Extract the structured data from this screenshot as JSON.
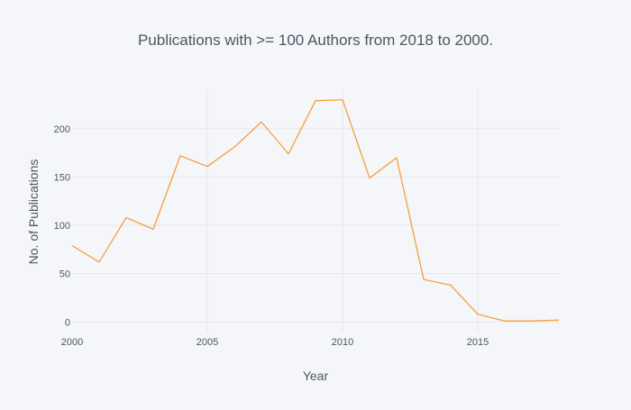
{
  "chart_data": {
    "type": "line",
    "title": "Publications with >= 100 Authors from 2018 to 2000.",
    "xlabel": "Year",
    "ylabel": "No. of Publications",
    "xlim": [
      2000,
      2018
    ],
    "ylim": [
      -10,
      240
    ],
    "x_ticks": [
      2000,
      2005,
      2010,
      2015
    ],
    "y_ticks": [
      0,
      50,
      100,
      150,
      200
    ],
    "grid": true,
    "colors": {
      "background": "#f5f6f9",
      "line": "#f5a03a",
      "grid": "#e3e6ec",
      "text": "#4d5663"
    },
    "series": [
      {
        "x": [
          2000,
          2001,
          2002,
          2003,
          2004,
          2005,
          2006,
          2007,
          2008,
          2009,
          2010,
          2011,
          2012,
          2013,
          2014,
          2015,
          2016,
          2017,
          2018
        ],
        "values": [
          79,
          62,
          108,
          96,
          172,
          161,
          181,
          207,
          174,
          229,
          230,
          149,
          170,
          44,
          38,
          8,
          1,
          1,
          2
        ]
      }
    ]
  }
}
